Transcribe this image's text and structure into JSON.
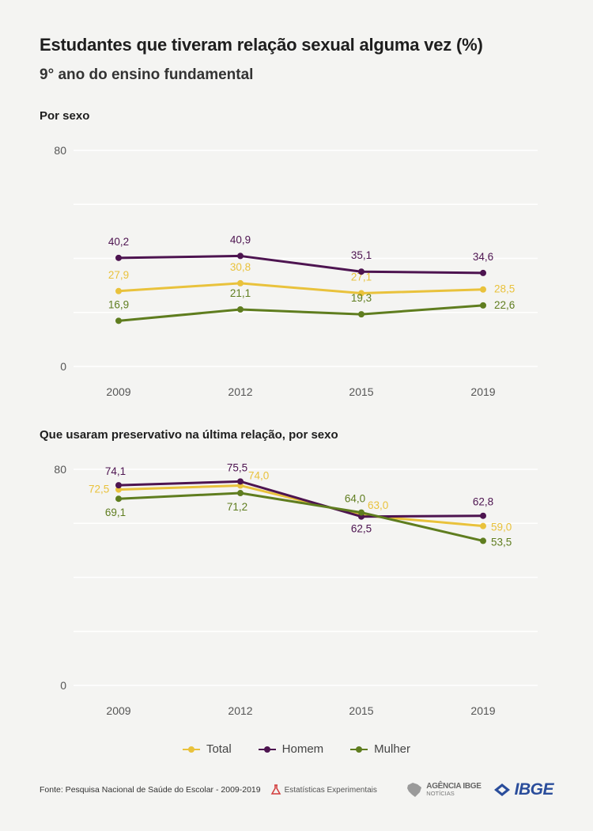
{
  "header": {
    "title": "Estudantes que tiveram relação sexual alguma vez (%)",
    "subtitle": "9° ano do ensino fundamental"
  },
  "colors": {
    "total": "#e9c23c",
    "homem": "#4d1450",
    "mulher": "#5f7d1f",
    "grid": "#ffffff",
    "axis_text": "#555555"
  },
  "chart_data": [
    {
      "type": "line",
      "title": "Por sexo",
      "x": [
        "2009",
        "2012",
        "2015",
        "2019"
      ],
      "ylim": [
        0,
        80
      ],
      "yticks": [
        "0",
        "80"
      ],
      "grid": true,
      "series": [
        {
          "name": "Total",
          "color": "#e9c23c",
          "values": [
            27.9,
            30.8,
            27.1,
            28.5
          ],
          "labels": [
            "27,9",
            "30,8",
            "27,1",
            "28,5"
          ]
        },
        {
          "name": "Homem",
          "color": "#4d1450",
          "values": [
            40.2,
            40.9,
            35.1,
            34.6
          ],
          "labels": [
            "40,2",
            "40,9",
            "35,1",
            "34,6"
          ]
        },
        {
          "name": "Mulher",
          "color": "#5f7d1f",
          "values": [
            16.9,
            21.1,
            19.3,
            22.6
          ],
          "labels": [
            "16,9",
            "21,1",
            "19,3",
            "22,6"
          ]
        }
      ]
    },
    {
      "type": "line",
      "title": "Que usaram preservativo na última relação, por sexo",
      "x": [
        "2009",
        "2012",
        "2015",
        "2019"
      ],
      "ylim": [
        0,
        80
      ],
      "yticks": [
        "0",
        "80"
      ],
      "grid": true,
      "series": [
        {
          "name": "Total",
          "color": "#e9c23c",
          "values": [
            72.5,
            74.0,
            63.0,
            59.0
          ],
          "labels": [
            "72,5",
            "74,0",
            "63,0",
            "59,0"
          ]
        },
        {
          "name": "Homem",
          "color": "#4d1450",
          "values": [
            74.1,
            75.5,
            62.5,
            62.8
          ],
          "labels": [
            "74,1",
            "75,5",
            "62,5",
            "62,8"
          ]
        },
        {
          "name": "Mulher",
          "color": "#5f7d1f",
          "values": [
            69.1,
            71.2,
            64.0,
            53.5
          ],
          "labels": [
            "69,1",
            "71,2",
            "64,0",
            "53,5"
          ]
        }
      ]
    }
  ],
  "legend": [
    {
      "label": "Total",
      "color": "#e9c23c"
    },
    {
      "label": "Homem",
      "color": "#4d1450"
    },
    {
      "label": "Mulher",
      "color": "#5f7d1f"
    }
  ],
  "footer": {
    "source": "Fonte: Pesquisa Nacional de Saúde do Escolar - 2009-2019",
    "experimental": "Estatísticas Experimentais",
    "agencia_top": "AGÊNCIA IBGE",
    "agencia_bottom": "NOTÍCIAS",
    "ibge": "IBGE"
  }
}
